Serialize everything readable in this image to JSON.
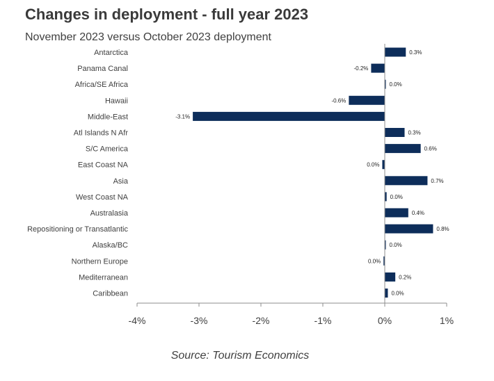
{
  "chart_data": {
    "type": "bar",
    "orientation": "horizontal",
    "title": "Changes in deployment - full year 2023",
    "subtitle": "November 2023 versus October 2023 deployment",
    "source": "Source: Tourism Economics",
    "categories": [
      "Antarctica",
      "Panama Canal",
      "Africa/SE Africa",
      "Hawaii",
      "Middle-East",
      "Atl Islands N Afr",
      "S/C America",
      "East Coast NA",
      "Asia",
      "West Coast NA",
      "Australasia",
      "Repositioning or Transatlantic",
      "Alaska/BC",
      "Northern Europe",
      "Mediterranean",
      "Caribbean"
    ],
    "values": [
      0.34,
      -0.22,
      0.0,
      -0.58,
      -3.1,
      0.32,
      0.58,
      -0.04,
      0.69,
      0.03,
      0.38,
      0.78,
      0.0,
      -0.02,
      0.17,
      0.05
    ],
    "data_labels": [
      "0.3%",
      "-0.2%",
      "0.0%",
      "-0.6%",
      "-3.1%",
      "0.3%",
      "0.6%",
      "0.0%",
      "0.7%",
      "0.0%",
      "0.4%",
      "0.8%",
      "0.0%",
      "0.0%",
      "0.2%",
      "0.0%"
    ],
    "xlim": [
      -4,
      1
    ],
    "xticks": [
      -4,
      -3,
      -2,
      -1,
      0,
      1
    ],
    "xtick_labels": [
      "-4%",
      "-3%",
      "-2%",
      "-1%",
      "0%",
      "1%"
    ],
    "bar_color": "#0d2d5a",
    "grid": false,
    "legend": "none"
  }
}
